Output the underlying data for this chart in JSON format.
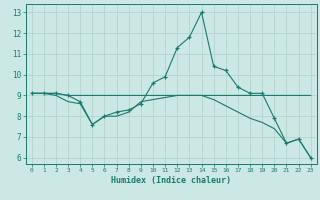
{
  "xlabel": "Humidex (Indice chaleur)",
  "x": [
    0,
    1,
    2,
    3,
    4,
    5,
    6,
    7,
    8,
    9,
    10,
    11,
    12,
    13,
    14,
    15,
    16,
    17,
    18,
    19,
    20,
    21,
    22,
    23
  ],
  "line1": [
    9.1,
    9.1,
    9.1,
    9.0,
    9.0,
    9.0,
    9.0,
    9.0,
    9.0,
    9.0,
    9.0,
    9.0,
    9.0,
    9.0,
    9.0,
    9.0,
    9.0,
    9.0,
    9.0,
    9.0,
    9.0,
    9.0,
    9.0,
    9.0
  ],
  "line2": [
    9.1,
    9.1,
    9.1,
    9.0,
    8.7,
    7.6,
    8.0,
    8.2,
    8.3,
    8.6,
    9.6,
    9.9,
    11.3,
    11.8,
    13.0,
    10.4,
    10.2,
    9.4,
    9.1,
    9.1,
    7.9,
    6.7,
    6.9,
    6.0
  ],
  "line3": [
    9.1,
    9.1,
    9.0,
    8.7,
    8.6,
    7.6,
    8.0,
    8.0,
    8.2,
    8.7,
    8.8,
    8.9,
    9.0,
    9.0,
    9.0,
    8.8,
    8.5,
    8.2,
    7.9,
    7.7,
    7.4,
    6.7,
    6.9,
    6.0
  ],
  "line_color": "#1a7a6e",
  "bg_color": "#cce8e4",
  "grid_color": "#b0d0cc",
  "ylim": [
    5.7,
    13.4
  ],
  "yticks": [
    6,
    7,
    8,
    9,
    10,
    11,
    12,
    13
  ],
  "xlim": [
    -0.5,
    23.5
  ]
}
